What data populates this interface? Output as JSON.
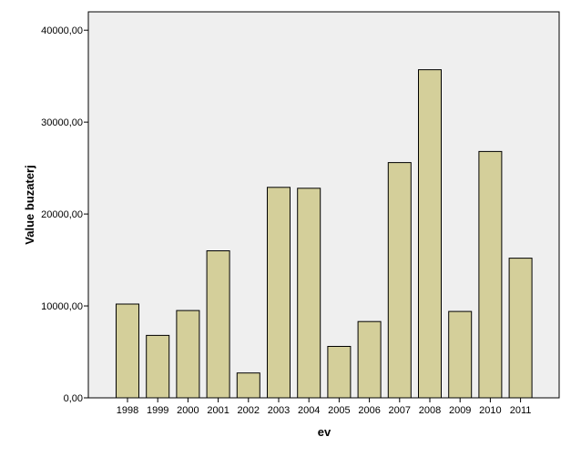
{
  "chart_data": {
    "type": "bar",
    "title": "",
    "xlabel": "ev",
    "ylabel": "Value buzaterj",
    "categories": [
      "1998",
      "1999",
      "2000",
      "2001",
      "2002",
      "2003",
      "2004",
      "2005",
      "2006",
      "2007",
      "2008",
      "2009",
      "2010",
      "2011"
    ],
    "values": [
      10200,
      6800,
      9500,
      16000,
      2700,
      22900,
      22800,
      5600,
      8300,
      25600,
      35700,
      9400,
      26800,
      15200
    ],
    "ylim": [
      0,
      42000
    ],
    "yticks": [
      0,
      10000,
      20000,
      30000,
      40000
    ],
    "ytick_labels": [
      "0,00",
      "10000,00",
      "20000,00",
      "30000,00",
      "40000,00"
    ],
    "grid": false,
    "colors": {
      "bar_fill": "#d4cf9a",
      "bar_stroke": "#000000",
      "plot_background": "#efefef"
    }
  }
}
